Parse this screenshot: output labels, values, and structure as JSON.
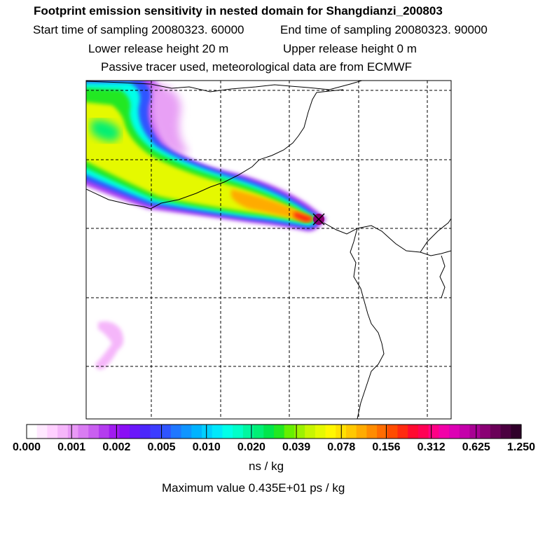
{
  "header": {
    "title": "Footprint emission sensitivity in nested domain for Shangdianzi_200803",
    "start": "Start time of sampling 20080323. 60000",
    "end": "End time of sampling 20080323. 90000",
    "lower": "Lower release height   20 m",
    "upper": "Upper release height    0 m",
    "tracer": "Passive tracer used, meteorological data are from ECMWF"
  },
  "colorbar": {
    "units": "ns / kg",
    "max_value": "Maximum value  0.435E+01 ps / kg",
    "ticks": [
      "0.000",
      "0.001",
      "0.002",
      "0.005",
      "0.010",
      "0.020",
      "0.039",
      "0.078",
      "0.156",
      "0.312",
      "0.625",
      "1.250"
    ],
    "colors": [
      "#ffffff",
      "#ffe8ff",
      "#ffd0ff",
      "#f5b6fa",
      "#e899f5",
      "#d97cf2",
      "#c95ff0",
      "#b43cef",
      "#a11cf0",
      "#8a0ff5",
      "#6a17fa",
      "#4b26fb",
      "#3c3cff",
      "#2f55ff",
      "#1f77ff",
      "#1095ff",
      "#00b3ff",
      "#00cfff",
      "#00e8fb",
      "#00ffe8",
      "#00ffc8",
      "#00f7a0",
      "#00ef75",
      "#00e64c",
      "#22e822",
      "#66ef00",
      "#9cf200",
      "#c8f500",
      "#e5f900",
      "#fff700",
      "#ffe100",
      "#ffc800",
      "#ffab00",
      "#ff8c00",
      "#ff6c00",
      "#ff4c00",
      "#ff2a10",
      "#ff0a30",
      "#ff0055",
      "#ff0085",
      "#f200a8",
      "#dc00b4",
      "#c400aa",
      "#a80094",
      "#8a0074",
      "#6a0058",
      "#4b0040",
      "#30002a"
    ]
  },
  "chart_data": {
    "type": "heatmap",
    "title": "Footprint emission sensitivity in nested domain for Shangdianzi_200803",
    "xlabel": "",
    "ylabel": "",
    "colorbar_label": "ns / kg",
    "colorbar_levels": [
      0.0,
      0.001,
      0.002,
      0.005,
      0.01,
      0.02,
      0.039,
      0.078,
      0.156,
      0.312,
      0.625,
      1.25
    ],
    "maximum_value_ps_per_kg": 4.35,
    "grid": true,
    "release_site": "Shangdianzi",
    "sampling_start": "20080323. 60000",
    "sampling_end": "20080323. 90000",
    "lower_release_height_m": 20,
    "upper_release_height_m": 0
  }
}
